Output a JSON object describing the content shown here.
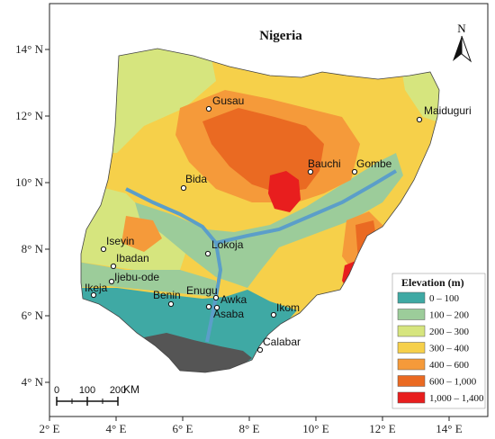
{
  "map": {
    "title": "Nigeria",
    "north_label": "N",
    "lat_ticks": [
      "4° N",
      "6° N",
      "8° N",
      "10° N",
      "12° N",
      "14° N"
    ],
    "lon_ticks": [
      "2° E",
      "4° E",
      "6° E",
      "8° E",
      "10° E",
      "12° E",
      "14° E"
    ],
    "cities": [
      "Gusau",
      "Maiduguri",
      "Bauchi",
      "Gombe",
      "Bida",
      "Iseyin",
      "Ibadan",
      "Ijebu-ode",
      "Ikeja",
      "Lokoja",
      "Benin",
      "Enugu",
      "Awka",
      "Asaba",
      "Ikom",
      "Calabar"
    ],
    "scale": {
      "labels": [
        "0",
        "100",
        "200"
      ],
      "unit": "KM"
    },
    "legend": {
      "title": "Elevation (m)",
      "classes": [
        {
          "label": "0 – 100",
          "color": "#3fa9a4"
        },
        {
          "label": "100 – 200",
          "color": "#9ccc9a"
        },
        {
          "label": "200 – 300",
          "color": "#d6e57e"
        },
        {
          "label": "300 – 400",
          "color": "#f6d04a"
        },
        {
          "label": "400 – 600",
          "color": "#f59a3a"
        },
        {
          "label": "600 – 1,000",
          "color": "#ea6a22"
        },
        {
          "label": "1,000 – 1,400",
          "color": "#e81e1e"
        }
      ]
    }
  }
}
